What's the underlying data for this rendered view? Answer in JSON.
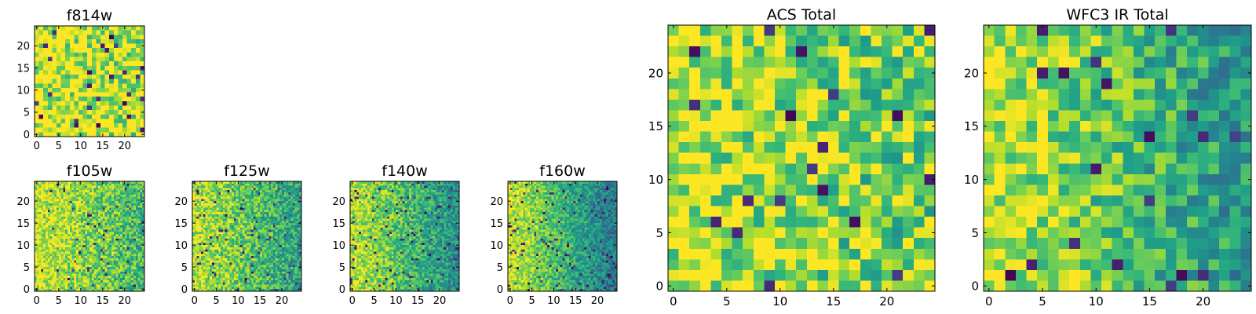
{
  "figure": {
    "colormap": "viridis",
    "panels": [
      {
        "id": "f814w",
        "title": "f814w",
        "type": "heatmap",
        "grid": 25,
        "res": 1,
        "xticks": [
          "0",
          "5",
          "10",
          "15",
          "20"
        ],
        "yticks": [
          "0",
          "5",
          "10",
          "15",
          "20"
        ],
        "gradient": 0.15,
        "noise": 0.6,
        "spread": 0.36,
        "dark_fraction": 0.03,
        "seed": 7
      },
      {
        "id": "f105w",
        "title": "f105w",
        "type": "heatmap",
        "grid": 25,
        "res": 2,
        "xticks": [
          "0",
          "5",
          "10",
          "15",
          "20"
        ],
        "yticks": [
          "0",
          "5",
          "10",
          "15",
          "20"
        ],
        "gradient": 0.55,
        "noise": 0.45,
        "spread": 0.32,
        "dark_fraction": 0.02,
        "seed": 11
      },
      {
        "id": "f125w",
        "title": "f125w",
        "type": "heatmap",
        "grid": 25,
        "res": 2,
        "xticks": [
          "0",
          "5",
          "10",
          "15",
          "20"
        ],
        "yticks": [
          "0",
          "5",
          "10",
          "15",
          "20"
        ],
        "gradient": 0.75,
        "noise": 0.45,
        "spread": 0.3,
        "dark_fraction": 0.03,
        "seed": 19
      },
      {
        "id": "f140w",
        "title": "f140w",
        "type": "heatmap",
        "grid": 25,
        "res": 2,
        "xticks": [
          "0",
          "5",
          "10",
          "15",
          "20"
        ],
        "yticks": [
          "0",
          "5",
          "10",
          "15",
          "20"
        ],
        "gradient": 0.9,
        "noise": 0.4,
        "spread": 0.3,
        "dark_fraction": 0.04,
        "seed": 23
      },
      {
        "id": "f160w",
        "title": "f160w",
        "type": "heatmap",
        "grid": 25,
        "res": 2,
        "xticks": [
          "0",
          "5",
          "10",
          "15",
          "20"
        ],
        "yticks": [
          "0",
          "5",
          "10",
          "15",
          "20"
        ],
        "gradient": 1.1,
        "noise": 0.35,
        "spread": 0.32,
        "dark_fraction": 0.05,
        "seed": 31
      },
      {
        "id": "acs_total",
        "title": "ACS Total",
        "type": "heatmap",
        "grid": 25,
        "res": 1,
        "xticks": [
          "0",
          "5",
          "10",
          "15",
          "20"
        ],
        "yticks": [
          "0",
          "5",
          "10",
          "15",
          "20"
        ],
        "gradient": 0.35,
        "noise": 0.55,
        "spread": 0.3,
        "dark_fraction": 0.035,
        "seed": 41
      },
      {
        "id": "wfc3_ir_total",
        "title": "WFC3 IR Total",
        "type": "heatmap",
        "grid": 25,
        "res": 1,
        "xticks": [
          "0",
          "5",
          "10",
          "15",
          "20"
        ],
        "yticks": [
          "0",
          "5",
          "10",
          "15",
          "20"
        ],
        "gradient": 0.8,
        "noise": 0.45,
        "spread": 0.3,
        "dark_fraction": 0.035,
        "seed": 53
      }
    ]
  },
  "chart_data": [
    {
      "type": "heatmap",
      "title": "f814w",
      "xlabel": "",
      "ylabel": "",
      "xlim": [
        0,
        25
      ],
      "ylim": [
        0,
        25
      ],
      "xticks": [
        0,
        5,
        10,
        15,
        20
      ],
      "yticks": [
        0,
        5,
        10,
        15,
        20
      ],
      "colormap": "viridis",
      "trend": "mostly green-yellow noise, brighter toward the left edge"
    },
    {
      "type": "heatmap",
      "title": "f105w",
      "xlim": [
        0,
        25
      ],
      "ylim": [
        0,
        25
      ],
      "xticks": [
        0,
        5,
        10,
        15,
        20
      ],
      "yticks": [
        0,
        5,
        10,
        15,
        20
      ],
      "colormap": "viridis",
      "trend": "bright yellow on left, fading to teal on right"
    },
    {
      "type": "heatmap",
      "title": "f125w",
      "xlim": [
        0,
        25
      ],
      "ylim": [
        0,
        25
      ],
      "xticks": [
        0,
        5,
        10,
        15,
        20
      ],
      "yticks": [
        0,
        5,
        10,
        15,
        20
      ],
      "colormap": "viridis",
      "trend": "bright left, blue toward the right"
    },
    {
      "type": "heatmap",
      "title": "f140w",
      "xlim": [
        0,
        25
      ],
      "ylim": [
        0,
        25
      ],
      "xticks": [
        0,
        5,
        10,
        15,
        20
      ],
      "yticks": [
        0,
        5,
        10,
        15,
        20
      ],
      "colormap": "viridis",
      "trend": "bright left, dark blue/purple toward the right"
    },
    {
      "type": "heatmap",
      "title": "f160w",
      "xlim": [
        0,
        25
      ],
      "ylim": [
        0,
        25
      ],
      "xticks": [
        0,
        5,
        10,
        15,
        20
      ],
      "yticks": [
        0,
        5,
        10,
        15,
        20
      ],
      "colormap": "viridis",
      "trend": "strong left-to-right gradient, yellow to dark purple"
    },
    {
      "type": "heatmap",
      "title": "ACS Total",
      "xlim": [
        0,
        25
      ],
      "ylim": [
        0,
        25
      ],
      "xticks": [
        0,
        5,
        10,
        15,
        20
      ],
      "yticks": [
        0,
        5,
        10,
        15,
        20
      ],
      "colormap": "viridis",
      "trend": "green-yellow noise with scattered dark pixels"
    },
    {
      "type": "heatmap",
      "title": "WFC3 IR Total",
      "xlim": [
        0,
        25
      ],
      "ylim": [
        0,
        25
      ],
      "xticks": [
        0,
        5,
        10,
        15,
        20
      ],
      "yticks": [
        0,
        5,
        10,
        15,
        20
      ],
      "colormap": "viridis",
      "trend": "yellow left fading to teal/blue right, scattered dark pixels"
    }
  ]
}
